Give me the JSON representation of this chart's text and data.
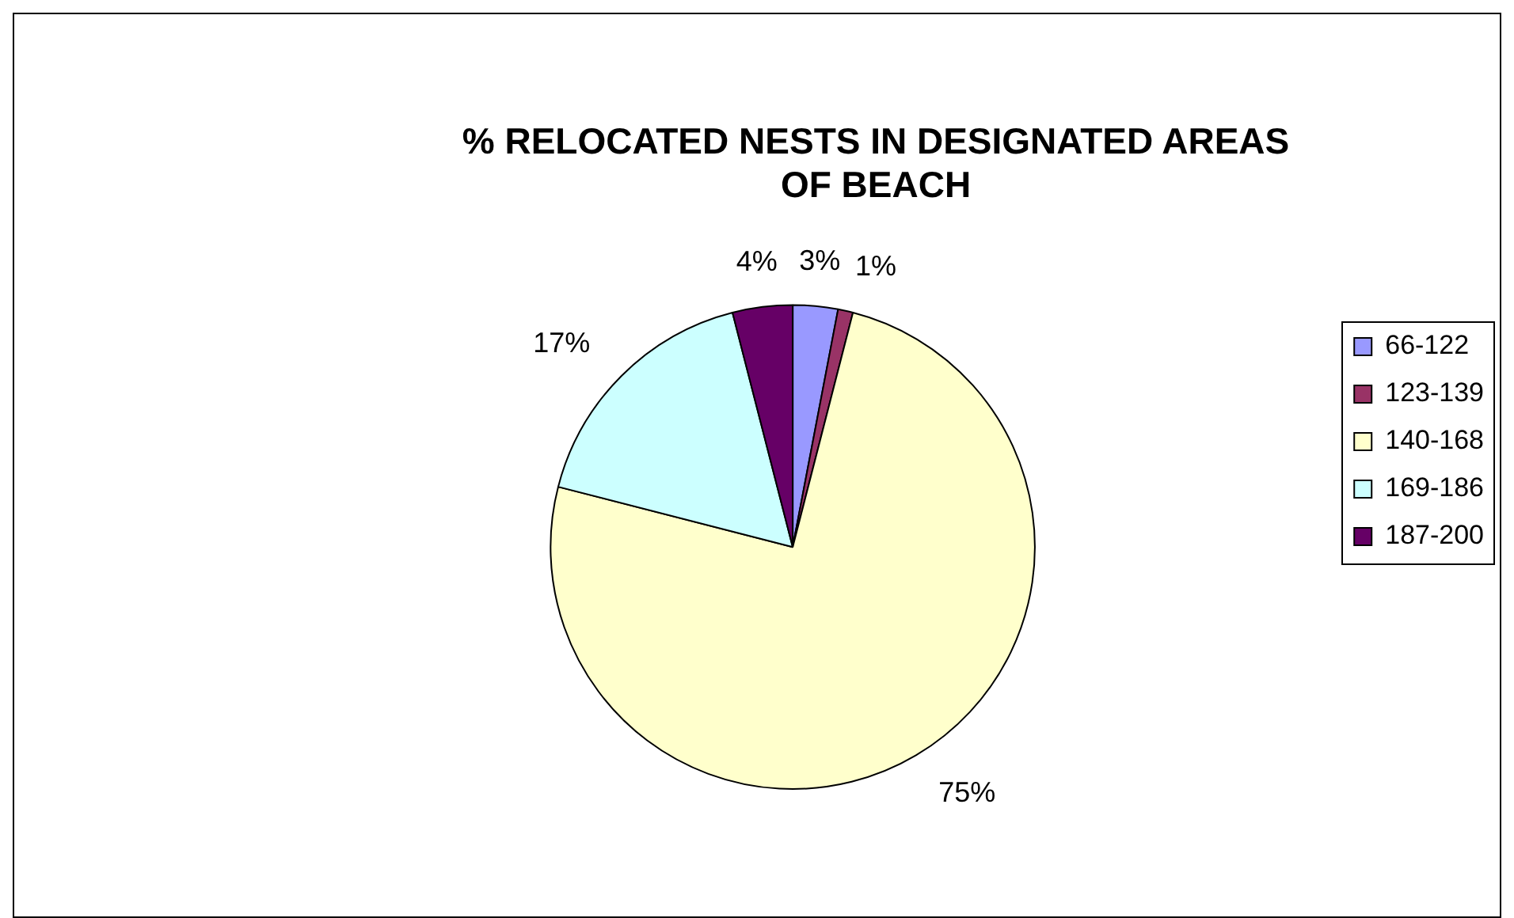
{
  "chart_data": {
    "type": "pie",
    "title": "% RELOCATED NESTS IN DESIGNATED AREAS OF BEACH",
    "categories": [
      "66-122",
      "123-139",
      "140-168",
      "169-186",
      "187-200"
    ],
    "values": [
      3,
      1,
      75,
      17,
      4
    ],
    "value_labels": [
      "3%",
      "1%",
      "75%",
      "17%",
      "4%"
    ],
    "colors": [
      "#9999ff",
      "#993366",
      "#ffffcc",
      "#ccffff",
      "#660066"
    ],
    "legend": "right"
  }
}
